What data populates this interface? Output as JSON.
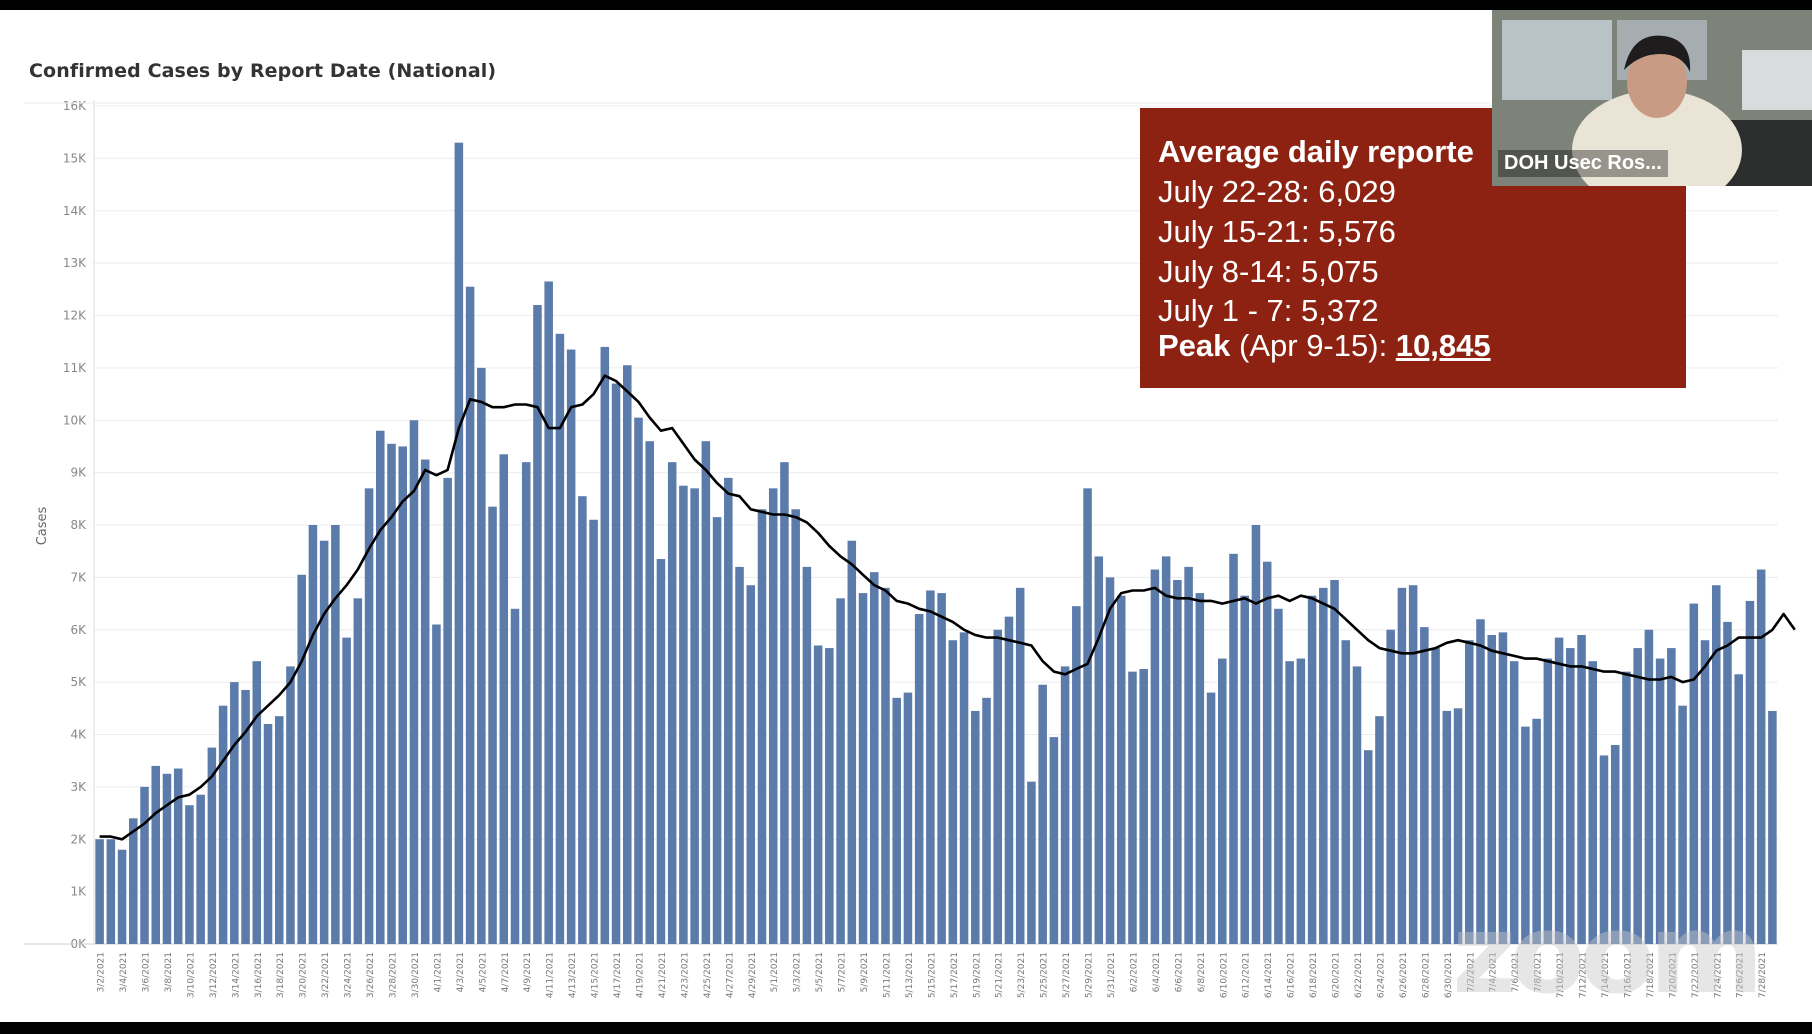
{
  "chart": {
    "title": "Confirmed Cases by Report Date (National)",
    "ylabel": "Cases",
    "bar_color": "#5b7bab",
    "line_color": "#000000"
  },
  "stats_box": {
    "heading": "Average daily reporte",
    "lines": [
      "July 22-28: 6,029",
      "July 15-21: 5,576",
      "July 8-14: 5,075",
      "July 1 - 7: 5,372"
    ],
    "peak_label": "Peak",
    "peak_range": " (Apr 9-15): ",
    "peak_value": "10,845",
    "bg_color": "#8e2212"
  },
  "video": {
    "participant_name": "DOH Usec Ros..."
  },
  "watermark": "zoom",
  "chart_data": {
    "type": "bar",
    "title": "Confirmed Cases by Report Date (National)",
    "ylabel": "Cases",
    "ylim": [
      0,
      16000
    ],
    "y_ticks": [
      "0K",
      "1K",
      "2K",
      "3K",
      "4K",
      "5K",
      "6K",
      "7K",
      "8K",
      "9K",
      "10K",
      "11K",
      "12K",
      "13K",
      "14K",
      "15K",
      "16K"
    ],
    "x_tick_labels": [
      "3/2/2021",
      "3/4/2021",
      "3/6/2021",
      "3/8/2021",
      "3/10/2021",
      "3/12/2021",
      "3/14/2021",
      "3/16/2021",
      "3/18/2021",
      "3/20/2021",
      "3/22/2021",
      "3/24/2021",
      "3/26/2021",
      "3/28/2021",
      "3/30/2021",
      "4/1/2021",
      "4/3/2021",
      "4/5/2021",
      "4/7/2021",
      "4/9/2021",
      "4/11/2021",
      "4/13/2021",
      "4/15/2021",
      "4/17/2021",
      "4/19/2021",
      "4/21/2021",
      "4/23/2021",
      "4/25/2021",
      "4/27/2021",
      "4/29/2021",
      "5/1/2021",
      "5/3/2021",
      "5/5/2021",
      "5/7/2021",
      "5/9/2021",
      "5/11/2021",
      "5/13/2021",
      "5/15/2021",
      "5/17/2021",
      "5/19/2021",
      "5/21/2021",
      "5/23/2021",
      "5/25/2021",
      "5/27/2021",
      "5/29/2021",
      "5/31/2021",
      "6/2/2021",
      "6/4/2021",
      "6/6/2021",
      "6/8/2021",
      "6/10/2021",
      "6/12/2021",
      "6/14/2021",
      "6/16/2021",
      "6/18/2021",
      "6/20/2021",
      "6/22/2021",
      "6/24/2021",
      "6/26/2021",
      "6/28/2021",
      "6/30/2021",
      "7/2/2021",
      "7/4/2021",
      "7/6/2021",
      "7/8/2021",
      "7/10/2021",
      "7/12/2021",
      "7/14/2021",
      "7/16/2021",
      "7/18/2021",
      "7/20/2021",
      "7/22/2021",
      "7/24/2021",
      "7/26/2021",
      "7/28/2021"
    ],
    "series": [
      {
        "type": "bar",
        "values": [
          2000,
          2000,
          1800,
          2400,
          3000,
          3400,
          3250,
          3350,
          2650,
          2850,
          3750,
          4550,
          5000,
          4850,
          5400,
          4200,
          4350,
          5300,
          7050,
          8000,
          7700,
          8000,
          5850,
          6600,
          8700,
          9800,
          9550,
          9500,
          10000,
          9250,
          6100,
          8900,
          15300,
          12550,
          11000,
          8350,
          9350,
          6400,
          9200,
          12200,
          12650,
          11650,
          11350,
          8550,
          8100,
          11400,
          10700,
          11050,
          10050,
          9600,
          7350,
          9200,
          8750,
          8700,
          9600,
          8150,
          8900,
          7200,
          6850,
          8300,
          8700,
          9200,
          8300,
          7200,
          5700,
          5650,
          6600,
          7700,
          6700,
          7100,
          6800,
          4700,
          4800,
          6300,
          6750,
          6700,
          5800,
          5950,
          4450,
          4700,
          6000,
          6250,
          6800,
          3100,
          4950,
          3950,
          5300,
          6450,
          8700,
          7400,
          7000,
          6650,
          5200,
          5250,
          7150,
          7400,
          6950,
          7200,
          6700,
          4800,
          5450,
          7450,
          6650,
          8000,
          7300,
          6400,
          5400,
          5450,
          6650,
          6800,
          6950,
          5800,
          5300,
          3700,
          4350,
          6000,
          6800,
          6850,
          6050,
          5650,
          4450,
          4500,
          5800,
          6200,
          5900,
          5950,
          5400,
          4150,
          4300,
          5450,
          5850,
          5650,
          5900,
          5400,
          3600,
          3800,
          5200,
          5650,
          6000,
          5450,
          5650,
          4550,
          6500,
          5800,
          6850,
          6150,
          5150,
          6550,
          7150,
          4450
        ]
      },
      {
        "type": "line",
        "values": [
          2050,
          2050,
          2000,
          2150,
          2300,
          2500,
          2650,
          2800,
          2850,
          3000,
          3200,
          3500,
          3800,
          4050,
          4350,
          4550,
          4750,
          5000,
          5400,
          5900,
          6300,
          6600,
          6850,
          7150,
          7550,
          7900,
          8150,
          8450,
          8650,
          9050,
          8950,
          9050,
          9850,
          10400,
          10350,
          10250,
          10250,
          10300,
          10300,
          10250,
          9850,
          9850,
          10250,
          10300,
          10500,
          10850,
          10750,
          10550,
          10350,
          10050,
          9800,
          9850,
          9550,
          9250,
          9050,
          8800,
          8600,
          8550,
          8300,
          8250,
          8200,
          8200,
          8150,
          8050,
          7850,
          7600,
          7400,
          7250,
          7050,
          6850,
          6750,
          6550,
          6500,
          6400,
          6350,
          6250,
          6150,
          6000,
          5900,
          5850,
          5850,
          5800,
          5750,
          5700,
          5400,
          5200,
          5150,
          5250,
          5350,
          5850,
          6400,
          6700,
          6750,
          6750,
          6800,
          6650,
          6600,
          6600,
          6550,
          6550,
          6500,
          6550,
          6600,
          6500,
          6600,
          6650,
          6550,
          6650,
          6600,
          6500,
          6400,
          6200,
          6000,
          5800,
          5650,
          5600,
          5550,
          5550,
          5600,
          5650,
          5750,
          5800,
          5750,
          5700,
          5600,
          5550,
          5500,
          5450,
          5450,
          5400,
          5350,
          5300,
          5300,
          5250,
          5200,
          5200,
          5150,
          5100,
          5050,
          5050,
          5100,
          5000,
          5050,
          5300,
          5600,
          5700,
          5850,
          5850,
          5850,
          6000,
          6300,
          6000
        ]
      }
    ]
  }
}
